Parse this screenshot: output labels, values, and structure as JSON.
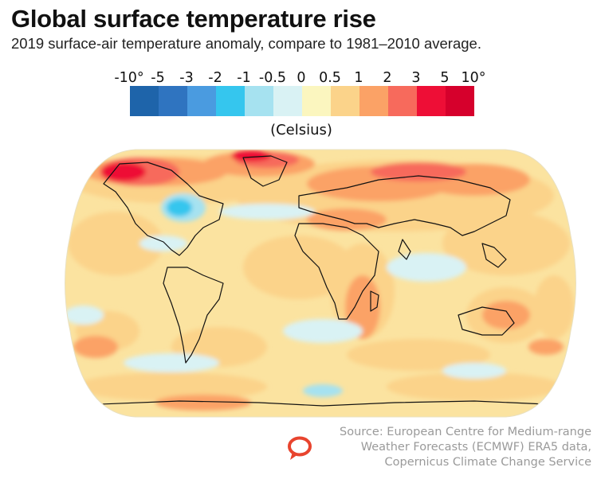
{
  "header": {
    "title": "Global surface temperature rise",
    "subtitle": "2019 surface-air temperature anomaly, compare to 1981–2010 average."
  },
  "legend": {
    "ticks": [
      "-10°",
      "-5",
      "-3",
      "-2",
      "-1",
      "-0.5",
      "0",
      "0.5",
      "1",
      "2",
      "3",
      "5",
      "10°"
    ],
    "colors": [
      "#1e64aa",
      "#2f74c0",
      "#4a9be0",
      "#35c6ee",
      "#a6e2f0",
      "#d9f2f4",
      "#fbf6bf",
      "#fbd38a",
      "#fba266",
      "#f76a5c",
      "#ee0e36",
      "#d6002c"
    ],
    "unit": "(Celsius)"
  },
  "map": {
    "projection": "Robinson",
    "base_color": "#fbe3a0",
    "land_outline_color": "#111111"
  },
  "footer": {
    "source_lines": [
      "Source: European Centre for Medium-range",
      "Weather Forecasts (ECMWF) ERA5 data,",
      "Copernicus Climate Change Service"
    ],
    "logo_icon": "speech-bubble-logo",
    "logo_color": "#e8442e"
  }
}
